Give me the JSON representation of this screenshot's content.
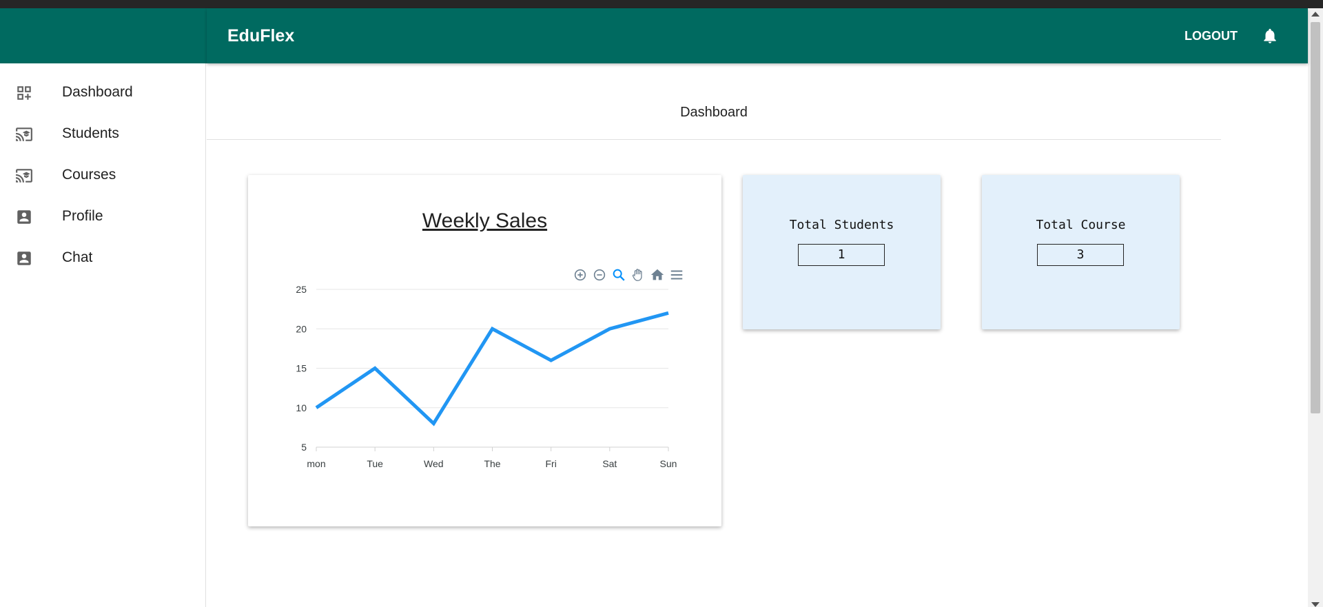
{
  "app": {
    "title": "EduFlex"
  },
  "header": {
    "logout_label": "LOGOUT",
    "notification_icon": "bell-icon"
  },
  "sidebar": {
    "items": [
      {
        "label": "Dashboard",
        "icon": "dashboard-add-icon"
      },
      {
        "label": "Students",
        "icon": "cast-education-icon"
      },
      {
        "label": "Courses",
        "icon": "cast-education-icon"
      },
      {
        "label": "Profile",
        "icon": "account-box-icon"
      },
      {
        "label": "Chat",
        "icon": "account-box-icon"
      }
    ]
  },
  "main": {
    "heading": "Dashboard",
    "stats": [
      {
        "title": "Total Students",
        "value": "1"
      },
      {
        "title": "Total Course",
        "value": "3"
      }
    ]
  },
  "colors": {
    "appbar": "#006a60",
    "line": "#2196f3",
    "stat_bg": "#e3f0fb"
  },
  "chart_data": {
    "type": "line",
    "title": "Weekly Sales",
    "categories": [
      "mon",
      "Tue",
      "Wed",
      "The",
      "Fri",
      "Sat",
      "Sun"
    ],
    "series": [
      {
        "values": [
          10,
          15,
          8,
          20,
          16,
          20,
          22
        ]
      }
    ],
    "yticks": [
      5,
      10,
      15,
      20,
      25
    ],
    "ylim": [
      5,
      25
    ],
    "grid": true,
    "toolbar": [
      "zoom-in-icon",
      "zoom-out-icon",
      "selection-zoom-icon",
      "pan-icon",
      "reset-home-icon",
      "menu-icon"
    ]
  }
}
